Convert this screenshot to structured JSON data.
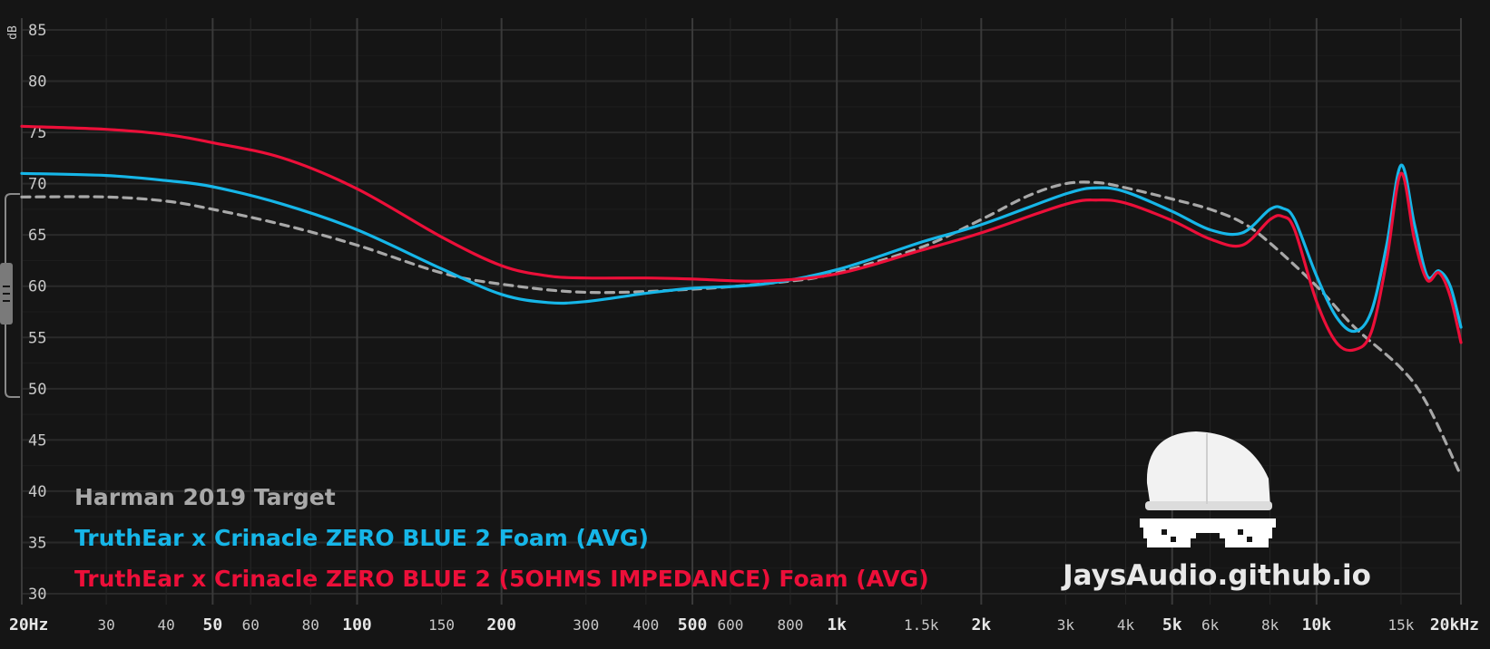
{
  "chart_data": {
    "type": "line",
    "ylabel": "dB",
    "xlabel": "",
    "x_scale": "log",
    "xlim": [
      20,
      20000
    ],
    "ylim": [
      30,
      85
    ],
    "grid": true,
    "legend_position": "bottom-left",
    "y_ticks": [
      30,
      35,
      40,
      45,
      50,
      55,
      60,
      65,
      70,
      75,
      80,
      85
    ],
    "x_ticks": [
      {
        "value": 20,
        "label": "20Hz",
        "major": true
      },
      {
        "value": 30,
        "label": "30",
        "major": false
      },
      {
        "value": 40,
        "label": "40",
        "major": false
      },
      {
        "value": 50,
        "label": "50",
        "major": true
      },
      {
        "value": 60,
        "label": "60",
        "major": false
      },
      {
        "value": 80,
        "label": "80",
        "major": false
      },
      {
        "value": 100,
        "label": "100",
        "major": true
      },
      {
        "value": 150,
        "label": "150",
        "major": false
      },
      {
        "value": 200,
        "label": "200",
        "major": true
      },
      {
        "value": 300,
        "label": "300",
        "major": false
      },
      {
        "value": 400,
        "label": "400",
        "major": false
      },
      {
        "value": 500,
        "label": "500",
        "major": true
      },
      {
        "value": 600,
        "label": "600",
        "major": false
      },
      {
        "value": 800,
        "label": "800",
        "major": false
      },
      {
        "value": 1000,
        "label": "1k",
        "major": true
      },
      {
        "value": 1500,
        "label": "1.5k",
        "major": false
      },
      {
        "value": 2000,
        "label": "2k",
        "major": true
      },
      {
        "value": 3000,
        "label": "3k",
        "major": false
      },
      {
        "value": 4000,
        "label": "4k",
        "major": false
      },
      {
        "value": 5000,
        "label": "5k",
        "major": true
      },
      {
        "value": 6000,
        "label": "6k",
        "major": false
      },
      {
        "value": 8000,
        "label": "8k",
        "major": false
      },
      {
        "value": 10000,
        "label": "10k",
        "major": true
      },
      {
        "value": 15000,
        "label": "15k",
        "major": false
      },
      {
        "value": 20000,
        "label": "20kHz",
        "major": true
      }
    ],
    "series": [
      {
        "name": "Harman 2019 Target",
        "color": "#a8a8a8",
        "dashed": true,
        "points": [
          [
            20,
            68.7
          ],
          [
            30,
            68.7
          ],
          [
            40,
            68.3
          ],
          [
            50,
            67.5
          ],
          [
            70,
            66
          ],
          [
            100,
            64
          ],
          [
            150,
            61.3
          ],
          [
            200,
            60.2
          ],
          [
            300,
            59.4
          ],
          [
            500,
            59.7
          ],
          [
            800,
            60.5
          ],
          [
            1000,
            61.3
          ],
          [
            1500,
            63.8
          ],
          [
            2000,
            66.5
          ],
          [
            2500,
            68.8
          ],
          [
            3000,
            70
          ],
          [
            3500,
            70.1
          ],
          [
            4000,
            69.6
          ],
          [
            5000,
            68.5
          ],
          [
            6000,
            67.5
          ],
          [
            7000,
            66.2
          ],
          [
            8000,
            64.2
          ],
          [
            10000,
            60
          ],
          [
            12000,
            56
          ],
          [
            15000,
            52
          ],
          [
            17000,
            48.5
          ],
          [
            20000,
            41.5
          ]
        ]
      },
      {
        "name": "TruthEar x Crinacle ZERO BLUE 2 Foam (AVG)",
        "color": "#16b6e8",
        "dashed": false,
        "points": [
          [
            20,
            71
          ],
          [
            30,
            70.8
          ],
          [
            40,
            70.3
          ],
          [
            50,
            69.7
          ],
          [
            70,
            68
          ],
          [
            100,
            65.5
          ],
          [
            150,
            61.7
          ],
          [
            200,
            59.2
          ],
          [
            250,
            58.4
          ],
          [
            300,
            58.5
          ],
          [
            400,
            59.3
          ],
          [
            500,
            59.8
          ],
          [
            700,
            60.2
          ],
          [
            1000,
            61.6
          ],
          [
            1500,
            64.3
          ],
          [
            2000,
            66
          ],
          [
            3000,
            69
          ],
          [
            3500,
            69.6
          ],
          [
            4000,
            69.2
          ],
          [
            5000,
            67.3
          ],
          [
            6000,
            65.5
          ],
          [
            7000,
            65.2
          ],
          [
            8000,
            67.5
          ],
          [
            8500,
            67.6
          ],
          [
            9000,
            66.5
          ],
          [
            10000,
            61
          ],
          [
            11000,
            57
          ],
          [
            12000,
            55.6
          ],
          [
            13000,
            57.5
          ],
          [
            14000,
            64
          ],
          [
            15000,
            71.8
          ],
          [
            16000,
            66
          ],
          [
            17000,
            61
          ],
          [
            18000,
            61.5
          ],
          [
            19000,
            60
          ],
          [
            20000,
            56
          ]
        ]
      },
      {
        "name": "TruthEar x Crinacle ZERO BLUE 2 (5OHMS IMPEDANCE) Foam (AVG)",
        "color": "#ec0f39",
        "dashed": false,
        "points": [
          [
            20,
            75.6
          ],
          [
            30,
            75.3
          ],
          [
            40,
            74.8
          ],
          [
            50,
            74
          ],
          [
            70,
            72.5
          ],
          [
            100,
            69.5
          ],
          [
            150,
            64.8
          ],
          [
            200,
            62
          ],
          [
            250,
            61
          ],
          [
            300,
            60.8
          ],
          [
            400,
            60.8
          ],
          [
            500,
            60.7
          ],
          [
            700,
            60.5
          ],
          [
            1000,
            61.2
          ],
          [
            1500,
            63.5
          ],
          [
            2000,
            65.2
          ],
          [
            3000,
            68
          ],
          [
            3500,
            68.4
          ],
          [
            4000,
            68.1
          ],
          [
            5000,
            66.4
          ],
          [
            6000,
            64.6
          ],
          [
            7000,
            64
          ],
          [
            8000,
            66.5
          ],
          [
            8500,
            66.8
          ],
          [
            9000,
            65.5
          ],
          [
            10000,
            58.5
          ],
          [
            11000,
            54.5
          ],
          [
            12000,
            53.8
          ],
          [
            13000,
            55.5
          ],
          [
            14000,
            62.5
          ],
          [
            15000,
            71
          ],
          [
            16000,
            64.5
          ],
          [
            17000,
            60.6
          ],
          [
            18000,
            61.3
          ],
          [
            19000,
            59
          ],
          [
            20000,
            54.5
          ]
        ]
      }
    ]
  },
  "watermark": {
    "text": "JaysAudio.github.io"
  }
}
